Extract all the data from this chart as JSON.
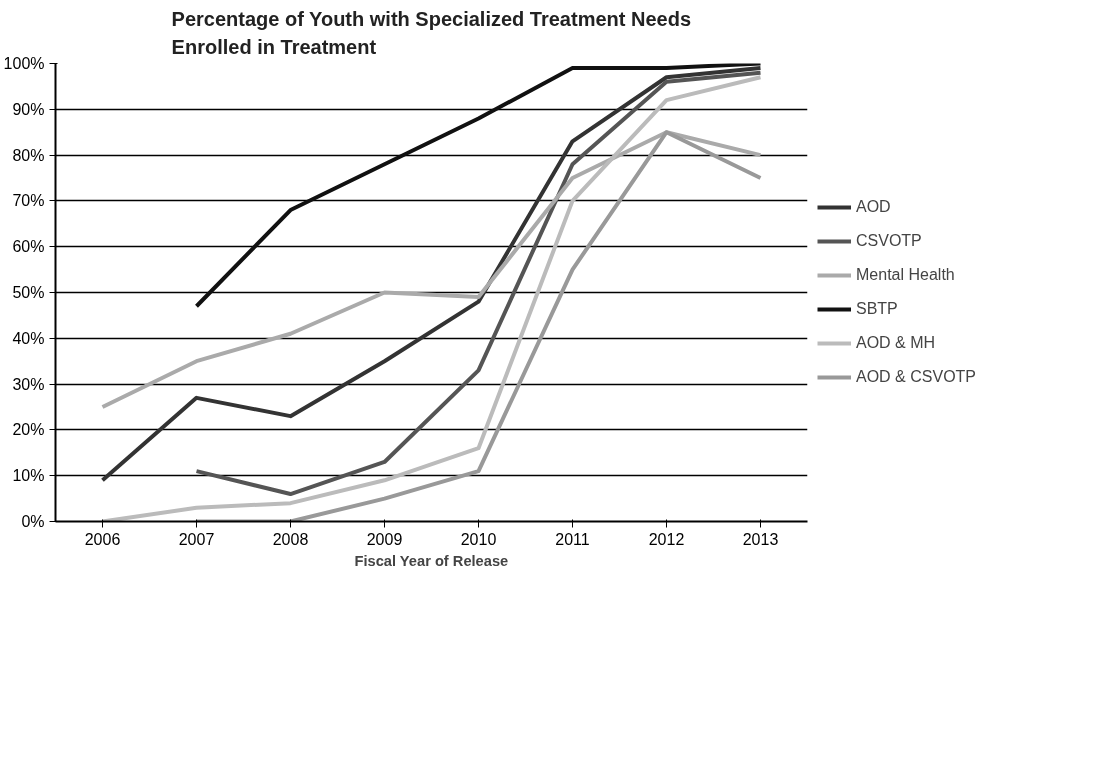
{
  "chart_data": {
    "type": "line",
    "title": "Percentage of Youth with Specialized Treatment Needs\nEnrolled in Treatment",
    "xlabel": "Fiscal Year of Release",
    "categories": [
      "2006",
      "2007",
      "2008",
      "2009",
      "2010",
      "2011",
      "2012",
      "2013"
    ],
    "series": [
      {
        "name": "AOD",
        "color": "#333333",
        "values": [
          9,
          27,
          23,
          35,
          48,
          83,
          97,
          99
        ]
      },
      {
        "name": "CSVOTP",
        "color": "#555555",
        "values": [
          null,
          11,
          6,
          13,
          33,
          78,
          96,
          98
        ]
      },
      {
        "name": "Mental Health",
        "color": "#aaaaaa",
        "values": [
          25,
          35,
          41,
          50,
          49,
          75,
          85,
          80
        ]
      },
      {
        "name": "SBTP",
        "color": "#111111",
        "values": [
          null,
          47,
          68,
          78,
          88,
          99,
          99,
          100
        ]
      },
      {
        "name": "AOD & MH",
        "color": "#bbbbbb",
        "values": [
          0,
          3,
          4,
          9,
          16,
          70,
          92,
          97
        ]
      },
      {
        "name": "AOD & CSVOTP",
        "color": "#999999",
        "values": [
          null,
          0,
          0,
          5,
          11,
          55,
          85,
          75
        ]
      }
    ],
    "ylim": [
      0,
      100
    ],
    "yticks": [
      {
        "value": 0,
        "label": "0%"
      },
      {
        "value": 10,
        "label": "10%"
      },
      {
        "value": 20,
        "label": "20%"
      },
      {
        "value": 30,
        "label": "30%"
      },
      {
        "value": 40,
        "label": "40%"
      },
      {
        "value": 50,
        "label": "50%"
      },
      {
        "value": 60,
        "label": "60%"
      },
      {
        "value": 70,
        "label": "70%"
      },
      {
        "value": 80,
        "label": "80%"
      },
      {
        "value": 90,
        "label": "90%"
      },
      {
        "value": 100,
        "label": "100%"
      }
    ],
    "grid": "y",
    "legend": "right",
    "marker": "none",
    "line_style": "solid"
  }
}
